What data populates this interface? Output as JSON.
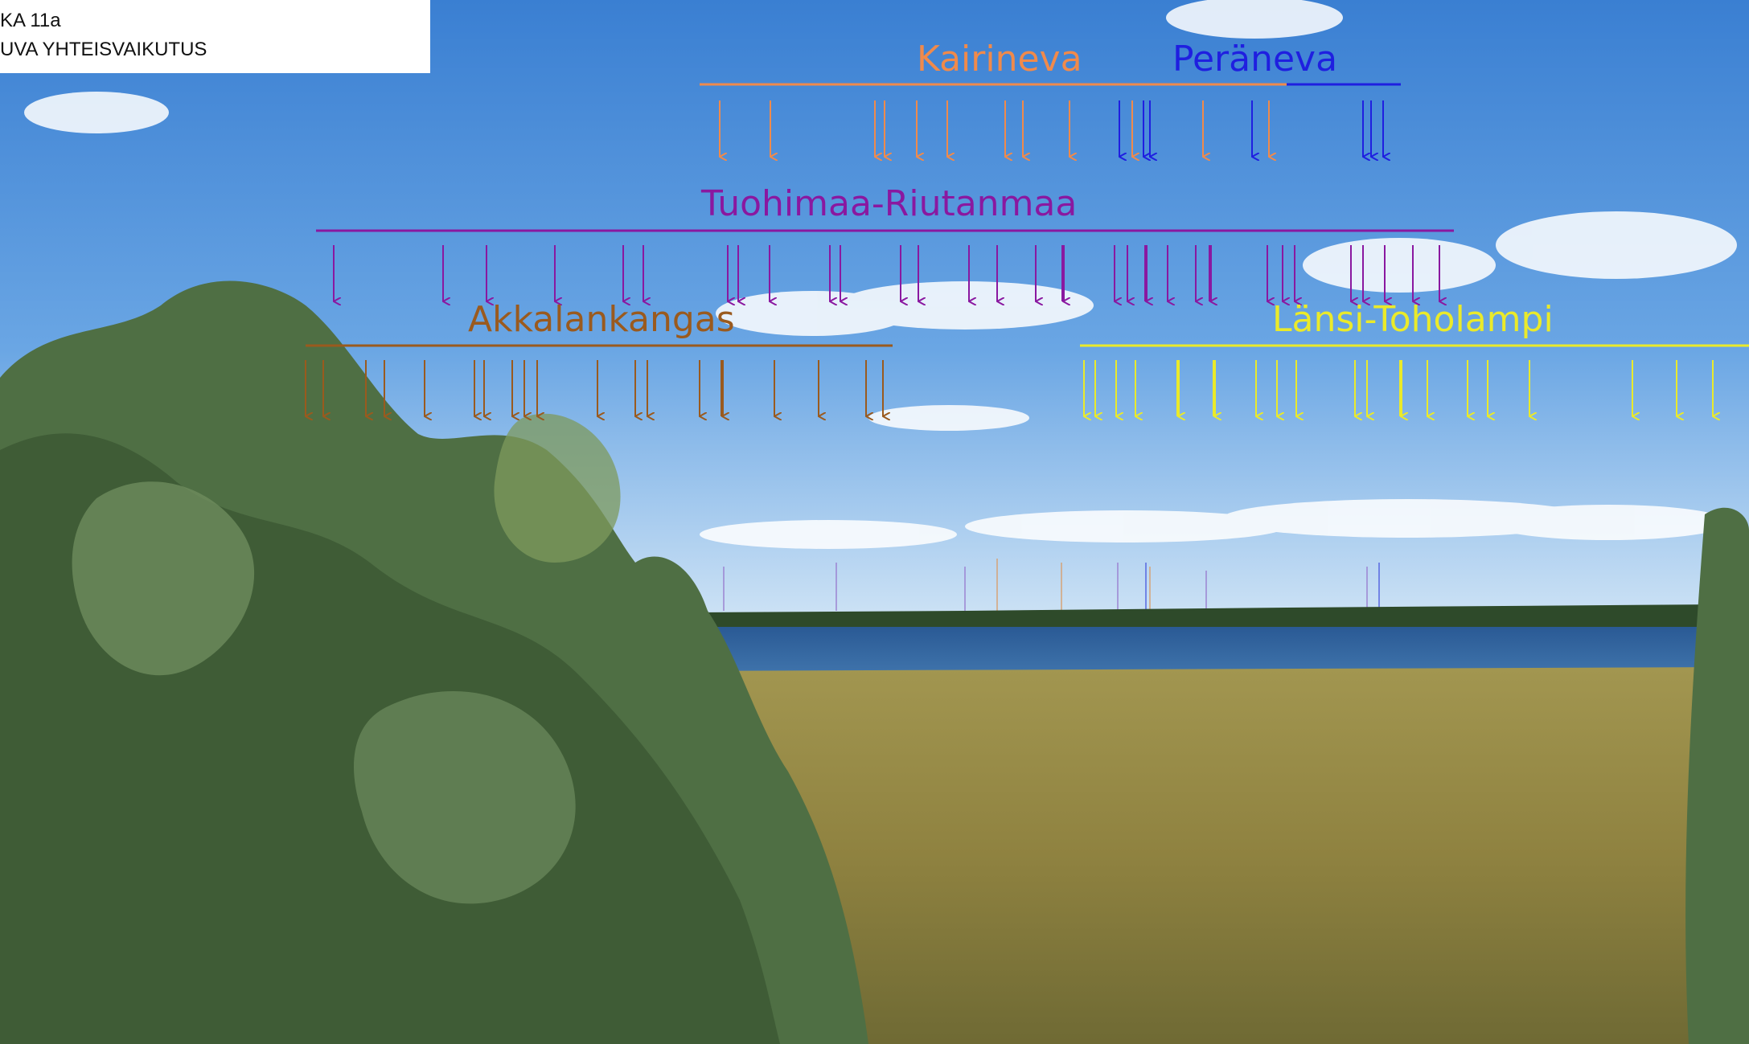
{
  "caption": {
    "line1": "KA 11a",
    "line2": "UVA YHTEISVAIKUTUS"
  },
  "colors": {
    "sky_top": "#3f86d6",
    "sky_horizon": "#d7e8f6",
    "lake": "#2c5f9a",
    "forest": "#2f4f2a",
    "meadow": "#9a8f4a",
    "bush": "#5f7f4f"
  },
  "parks": [
    {
      "name": "Kairineva",
      "color": "#f08a4b"
    },
    {
      "name": "Peräneva",
      "color": "#1f1fe0"
    },
    {
      "name": "Tuohimaa-Riutanmaa",
      "color": "#8a18a0"
    },
    {
      "name": "Akkalankangas",
      "color": "#9a5a1e"
    },
    {
      "name": "Länsi-Toholampi",
      "color": "#eaea2a"
    }
  ]
}
